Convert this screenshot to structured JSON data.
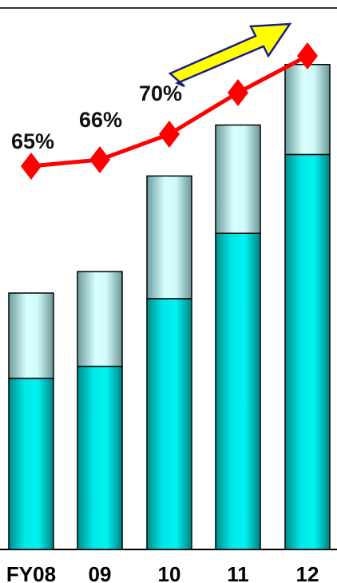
{
  "chart_data": {
    "type": "bar",
    "stacked": true,
    "categories": [
      "FY08",
      "09",
      "10",
      "11",
      "12"
    ],
    "series": [
      {
        "values": [
          215,
          230,
          315,
          397,
          496
        ],
        "color": "#00dcdc"
      },
      {
        "values": [
          107,
          119,
          154,
          136,
          113
        ],
        "color": "#b4ecec"
      }
    ],
    "line": {
      "values": [
        65,
        66,
        70,
        null,
        null
      ],
      "labels": [
        "65%",
        "66%",
        "70%",
        "",
        ""
      ],
      "color": "#ff0000",
      "marker": "diamond"
    },
    "trend_arrow": {
      "color": "#ffff00"
    },
    "ylim": [
      0,
      690
    ],
    "grid": false,
    "legend": "none"
  }
}
